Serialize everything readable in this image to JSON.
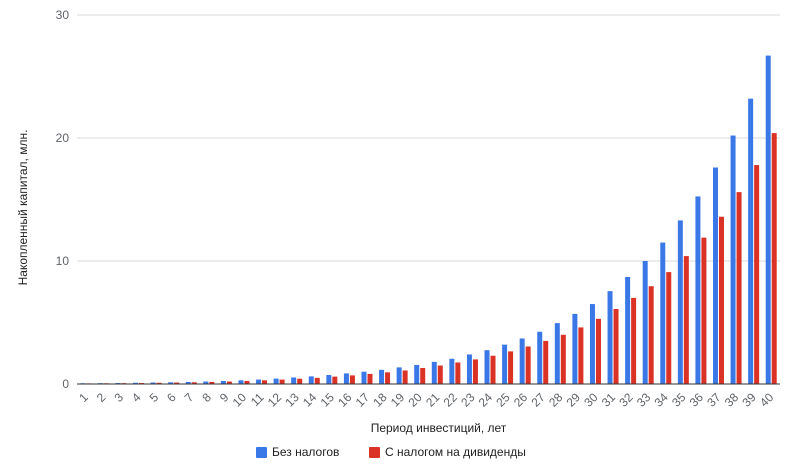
{
  "chart_data": {
    "type": "bar",
    "title": "",
    "xlabel": "Период инвестиций, лет",
    "ylabel": "Накопленный капитал, млн.",
    "ylim": [
      0,
      30
    ],
    "yticks": [
      0,
      10,
      20,
      30
    ],
    "grid": true,
    "legend_position": "bottom",
    "categories": [
      "1",
      "2",
      "3",
      "4",
      "5",
      "6",
      "7",
      "8",
      "9",
      "10",
      "11",
      "12",
      "13",
      "14",
      "15",
      "16",
      "17",
      "18",
      "19",
      "20",
      "21",
      "22",
      "23",
      "24",
      "25",
      "26",
      "27",
      "28",
      "29",
      "30",
      "31",
      "32",
      "33",
      "34",
      "35",
      "36",
      "37",
      "38",
      "39",
      "40"
    ],
    "series": [
      {
        "name": "Без налогов",
        "color": "#3b78e7",
        "values": [
          0.06,
          0.07,
          0.08,
          0.1,
          0.12,
          0.14,
          0.17,
          0.2,
          0.25,
          0.3,
          0.36,
          0.44,
          0.53,
          0.62,
          0.73,
          0.86,
          1.0,
          1.15,
          1.35,
          1.55,
          1.8,
          2.05,
          2.4,
          2.75,
          3.2,
          3.7,
          4.25,
          4.95,
          5.7,
          6.5,
          7.55,
          8.7,
          10.0,
          11.5,
          13.3,
          15.25,
          17.6,
          20.2,
          23.2,
          26.7
        ]
      },
      {
        "name": "С налогом на дивиденды",
        "color": "#db3226",
        "values": [
          0.05,
          0.06,
          0.07,
          0.08,
          0.1,
          0.12,
          0.14,
          0.17,
          0.2,
          0.25,
          0.3,
          0.36,
          0.43,
          0.5,
          0.6,
          0.7,
          0.82,
          0.95,
          1.1,
          1.3,
          1.5,
          1.75,
          2.0,
          2.3,
          2.65,
          3.05,
          3.5,
          4.0,
          4.6,
          5.3,
          6.1,
          7.0,
          7.95,
          9.1,
          10.4,
          11.9,
          13.6,
          15.6,
          17.8,
          20.4
        ]
      }
    ]
  }
}
